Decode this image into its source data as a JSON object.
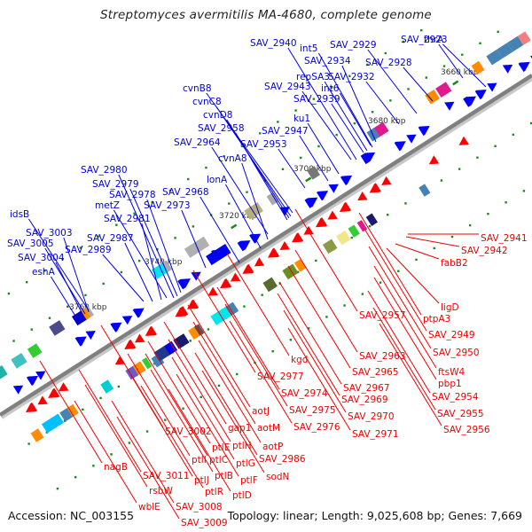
{
  "title": "Streptomyces avermitilis MA-4680, complete genome",
  "accession": "Accession: NC_003155",
  "stats": "Topology: linear; Length: 9,025,608 bp; Genes: 7,669",
  "colors": {
    "forward_label": "#0000dd",
    "reverse_label": "#ee0000",
    "forward_gene": "#0000ff",
    "reverse_gene": "#ff0000",
    "axis": "#808080",
    "tick": "#1a8a1a"
  },
  "scale_ticks": [
    "3660 kbp",
    "3680 kbp",
    "3700 kbp",
    "3720 kbp",
    "3740 kbp",
    "3760 kbp"
  ],
  "forward_labels": [
    "thrA",
    "SAV_2923",
    "SAV_2928",
    "SAV_2929",
    "SAV_2932",
    "SAV_2934",
    "int5",
    "repSA3",
    "int6",
    "SAV_2939",
    "SAV_2940",
    "SAV_2943",
    "ku1",
    "SAV_2947",
    "SAV_2953",
    "cvnB8",
    "cvnC8",
    "cvnD8",
    "SAV_2958",
    "SAV_2964",
    "cvnA8",
    "lonA",
    "SAV_2968",
    "SAV_2973",
    "SAV_2978",
    "SAV_2979",
    "SAV_2980",
    "metZ",
    "SAV_2981",
    "SAV_2987",
    "SAV_2989",
    "idsB",
    "SAV_3003",
    "SAV_3005",
    "SAV_3004",
    "eshA"
  ],
  "reverse_labels": [
    "SAV_2941",
    "SAV_2942",
    "fabB2",
    "ligD",
    "SAV_2957",
    "ptpA3",
    "SAV_2949",
    "SAV_2950",
    "ftsW4",
    "pbp1",
    "SAV_2954",
    "SAV_2955",
    "SAV_2956",
    "SAV_2963",
    "SAV_2965",
    "SAV_2967",
    "SAV_2969",
    "SAV_2970",
    "SAV_2971",
    "kgd",
    "SAV_2977",
    "SAV_2974",
    "SAV_2975",
    "SAV_2976",
    "aotJ",
    "aotM",
    "aotP",
    "SAV_2986",
    "sodN",
    "gap1",
    "ptlH",
    "ptlE",
    "ptlG",
    "ptlC",
    "ptlF",
    "ptlB",
    "ptlI",
    "ptlD",
    "SAV_3002",
    "ptlJ",
    "ptlR",
    "SAV_3011",
    "rsbW",
    "nagB",
    "wblE",
    "SAV_3008",
    "SAV_3009"
  ]
}
